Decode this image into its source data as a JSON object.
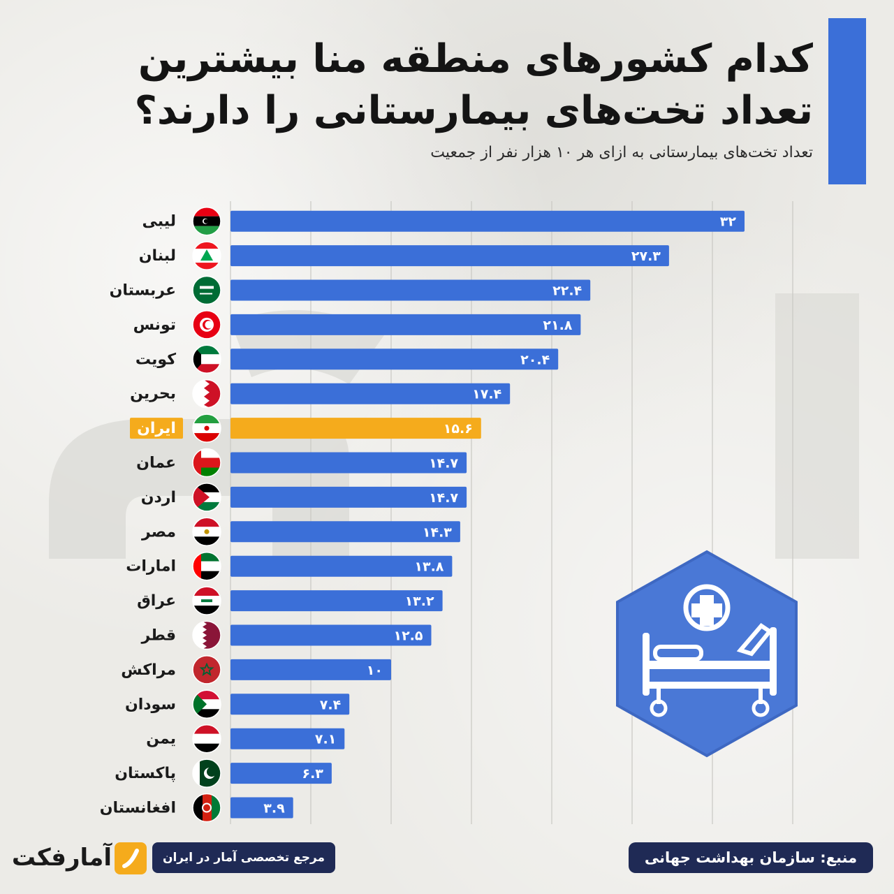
{
  "title": "کدام کشورهای منطقه منا بیشترین تعداد تخت‌های بیمارستانی را دارند؟",
  "subtitle": "تعداد تخت‌های بیمارستانی به ازای هر ۱۰ هزار نفر از جمعیت",
  "source": "منبع: سازمان بهداشت جهانی",
  "brand_tagline": "مرجع تخصصی آمار در ایران",
  "brand_name": "آمارفکت",
  "icon": "hospital-bed-icon",
  "colors": {
    "bar": "#3b6fd8",
    "highlight": "#f5ab1c",
    "accent": "#3b6fd8",
    "footer": "#1f2a55",
    "text": "#141414"
  },
  "chart_data": {
    "type": "bar",
    "orientation": "horizontal",
    "categories": [
      "لیبی",
      "لبنان",
      "عربستان",
      "تونس",
      "کویت",
      "بحرین",
      "ایران",
      "عمان",
      "اردن",
      "مصر",
      "امارات",
      "عراق",
      "قطر",
      "مراکش",
      "سودان",
      "یمن",
      "پاکستان",
      "افغانستان"
    ],
    "values": [
      32,
      27.3,
      22.4,
      21.8,
      20.4,
      17.4,
      15.6,
      14.7,
      14.7,
      14.3,
      13.8,
      13.2,
      12.5,
      10,
      7.4,
      7.1,
      6.3,
      3.9
    ],
    "value_labels": [
      "۳۲",
      "۲۷.۳",
      "۲۲.۴",
      "۲۱.۸",
      "۲۰.۴",
      "۱۷.۴",
      "۱۵.۶",
      "۱۴.۷",
      "۱۴.۷",
      "۱۴.۳",
      "۱۳.۸",
      "۱۳.۲",
      "۱۲.۵",
      "۱۰",
      "۷.۴",
      "۷.۱",
      "۶.۳",
      "۳.۹"
    ],
    "highlight": "ایران",
    "xlim": [
      0,
      35
    ],
    "grid": true,
    "flags": [
      "libya",
      "lebanon",
      "saudi-arabia",
      "tunisia",
      "kuwait",
      "bahrain",
      "iran",
      "oman",
      "jordan",
      "egypt",
      "uae",
      "iraq",
      "qatar",
      "morocco",
      "sudan",
      "yemen",
      "pakistan",
      "afghanistan"
    ]
  }
}
